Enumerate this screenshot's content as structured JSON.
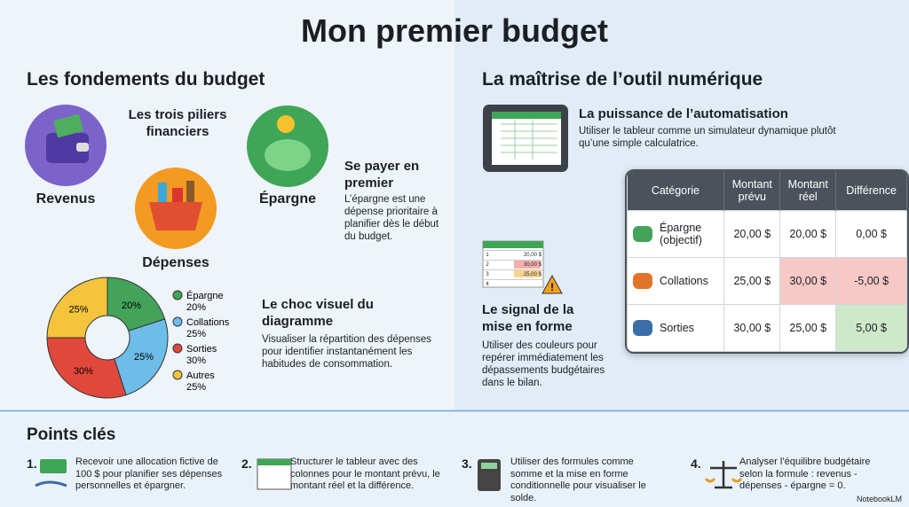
{
  "title": "Mon premier budget",
  "fundamentals": {
    "heading": "Les fondements du budget",
    "pillars_title": "Les trois piliers financiers",
    "pillars": [
      "Revenus",
      "Dépenses",
      "Épargne"
    ],
    "pay_first": {
      "title": "Se payer en premier",
      "text": "L’épargne est une dépense prioritaire à planifier dès le début du budget."
    },
    "donut": {
      "segments": [
        {
          "name": "Épargne",
          "value": 20,
          "label": "20%",
          "color": "#43a35a"
        },
        {
          "name": "Collations",
          "value": 25,
          "label": "25%",
          "color": "#6cbde8"
        },
        {
          "name": "Sorties",
          "value": 30,
          "label": "30%",
          "color": "#e0483c"
        },
        {
          "name": "Autres",
          "value": 25,
          "label": "25%",
          "color": "#f3c43c"
        }
      ]
    },
    "visual": {
      "title": "Le choc visuel du diagramme",
      "text": "Visualiser la répartition des dépenses pour identifier instantanément les habitudes de consommation."
    }
  },
  "digital": {
    "heading": "La maîtrise de l’outil numérique",
    "automation": {
      "title": "La puissance de l’automatisation",
      "text": "Utiliser le tableur comme un simulateur dynamique plutôt qu’une simple calculatrice."
    },
    "mini_sheet": {
      "rows": [
        [
          "1",
          "20,00 $"
        ],
        [
          "2",
          "30,00 $"
        ],
        [
          "3",
          "25,00 $"
        ],
        [
          "4",
          ""
        ]
      ]
    },
    "signal": {
      "title": "Le signal de la mise en forme",
      "text": "Utiliser des couleurs pour repérer immédiatement les dépassements budgétaires dans le bilan."
    },
    "table": {
      "header": [
        "Catégorie",
        "Montant prévu",
        "Montant réel",
        "Différence"
      ],
      "rows": [
        [
          "Épargne (objectif)",
          "20,00 $",
          "20,00 $",
          "0,00 $"
        ],
        [
          "Collations",
          "25,00 $",
          "30,00 $",
          "-5,00 $"
        ],
        [
          "Sorties",
          "30,00 $",
          "25,00 $",
          "5,00 $"
        ]
      ]
    }
  },
  "key_points": {
    "heading": "Points clés",
    "items": [
      {
        "number": "1.",
        "text": "Recevoir une allocation fictive de 100 $ pour planifier ses dépenses personnelles et épargner."
      },
      {
        "number": "2.",
        "text": "Structurer le tableur avec des colonnes pour le montant prévu, le montant réel et la différence."
      },
      {
        "number": "3.",
        "text": "Utiliser des formules comme somme et la mise en forme conditionnelle pour visualiser le solde."
      },
      {
        "number": "4.",
        "text": "Analyser l’équilibre budgétaire selon la formule : revenus - dépenses - épargne = 0."
      }
    ]
  },
  "brand": "NotebookLM"
}
